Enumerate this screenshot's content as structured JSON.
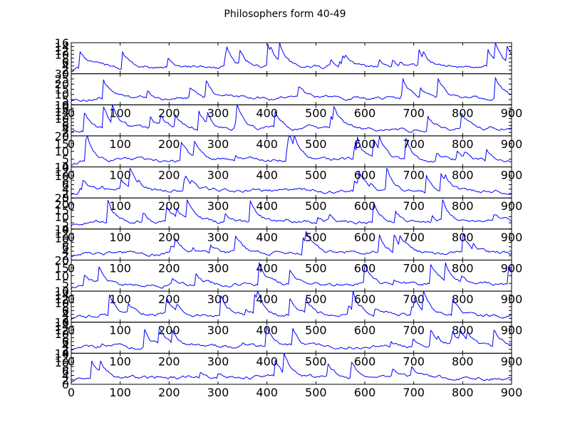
{
  "chart_data": {
    "type": "line",
    "title": "Philosophers form 40-49",
    "x_tick_labels": [
      "0",
      "100",
      "200",
      "300",
      "400",
      "500",
      "600",
      "700",
      "800",
      "900"
    ],
    "xlim": [
      0,
      900
    ],
    "grid": false,
    "panels": [
      {
        "ylim": [
          0,
          16
        ],
        "y_ticks": [
          "0",
          "2",
          "4",
          "6",
          "8",
          "10",
          "12",
          "14",
          "16"
        ],
        "x_tick_labels_visible": false,
        "seed": 11
      },
      {
        "ylim": [
          0,
          30
        ],
        "y_ticks": [
          "0",
          "5",
          "10",
          "15",
          "20",
          "25",
          "30"
        ],
        "x_tick_labels_visible": true,
        "seed": 23
      },
      {
        "ylim": [
          0,
          18
        ],
        "y_ticks": [
          "0",
          "2",
          "4",
          "6",
          "8",
          "10",
          "12",
          "14",
          "16",
          "18"
        ],
        "x_tick_labels_visible": true,
        "seed": 37
      },
      {
        "ylim": [
          0,
          20
        ],
        "y_ticks": [
          "0",
          "5",
          "10",
          "15",
          "20"
        ],
        "x_tick_labels_visible": true,
        "seed": 41
      },
      {
        "ylim": [
          0,
          14
        ],
        "y_ticks": [
          "0",
          "2",
          "4",
          "6",
          "8",
          "10",
          "12",
          "14"
        ],
        "x_tick_labels_visible": true,
        "seed": 53
      },
      {
        "ylim": [
          0,
          25
        ],
        "y_ticks": [
          "0",
          "5",
          "10",
          "15",
          "20",
          "25"
        ],
        "x_tick_labels_visible": true,
        "seed": 67
      },
      {
        "ylim": [
          0,
          14
        ],
        "y_ticks": [
          "0",
          "2",
          "4",
          "6",
          "8",
          "10",
          "12",
          "14"
        ],
        "x_tick_labels_visible": true,
        "seed": 71
      },
      {
        "ylim": [
          0,
          20
        ],
        "y_ticks": [
          "0",
          "5",
          "10",
          "15",
          "20"
        ],
        "x_tick_labels_visible": true,
        "seed": 83
      },
      {
        "ylim": [
          0,
          16
        ],
        "y_ticks": [
          "0",
          "2",
          "4",
          "6",
          "8",
          "10",
          "12",
          "14",
          "16"
        ],
        "x_tick_labels_visible": true,
        "seed": 97
      },
      {
        "ylim": [
          0,
          16
        ],
        "y_ticks": [
          "0",
          "2",
          "4",
          "6",
          "8",
          "10",
          "12",
          "14",
          "16"
        ],
        "x_tick_labels_visible": true,
        "seed": 101
      },
      {
        "ylim": [
          0,
          14
        ],
        "y_ticks": [
          "0",
          "2",
          "4",
          "6",
          "8",
          "10",
          "12",
          "14"
        ],
        "x_tick_labels_visible": true,
        "seed": 11
      }
    ]
  }
}
